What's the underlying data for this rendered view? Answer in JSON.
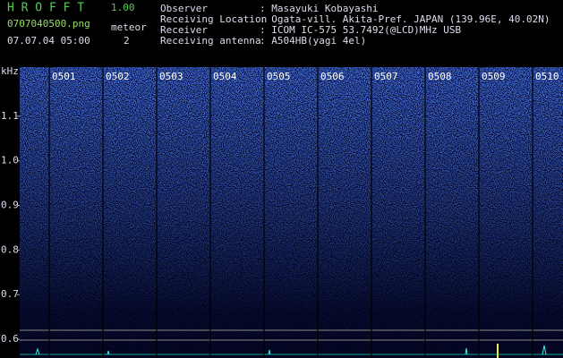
{
  "header": {
    "app": "H R O F F T",
    "version": "1.00",
    "file": "0707040500.png",
    "meteor_label": "meteor",
    "datetime": "07.07.04 05:00",
    "meteor_count": "2",
    "info": [
      [
        "Observer",
        ": Masayuki Kobayashi"
      ],
      [
        "Receiving Location",
        ": Ogata-vill. Akita-Pref. JAPAN (139.96E, 40.02N)"
      ],
      [
        "Receiver",
        ": ICOM IC-575 53.7492(@LCD)MHz USB"
      ],
      [
        "Receiving antenna",
        ": A504HB(yagi 4el)"
      ]
    ]
  },
  "chart_data": {
    "type": "spectrogram",
    "y_label": "kHz",
    "categories": [
      "0501",
      "0502",
      "0503",
      "0504",
      "0505",
      "0506",
      "0507",
      "0508",
      "0509",
      "0510"
    ],
    "ylim": [
      0.558,
      1.21
    ],
    "yticks": [
      0.6,
      0.7,
      0.8,
      0.9,
      {
        "value": 1.0,
        "label": "1.0"
      },
      1.1
    ]
  }
}
